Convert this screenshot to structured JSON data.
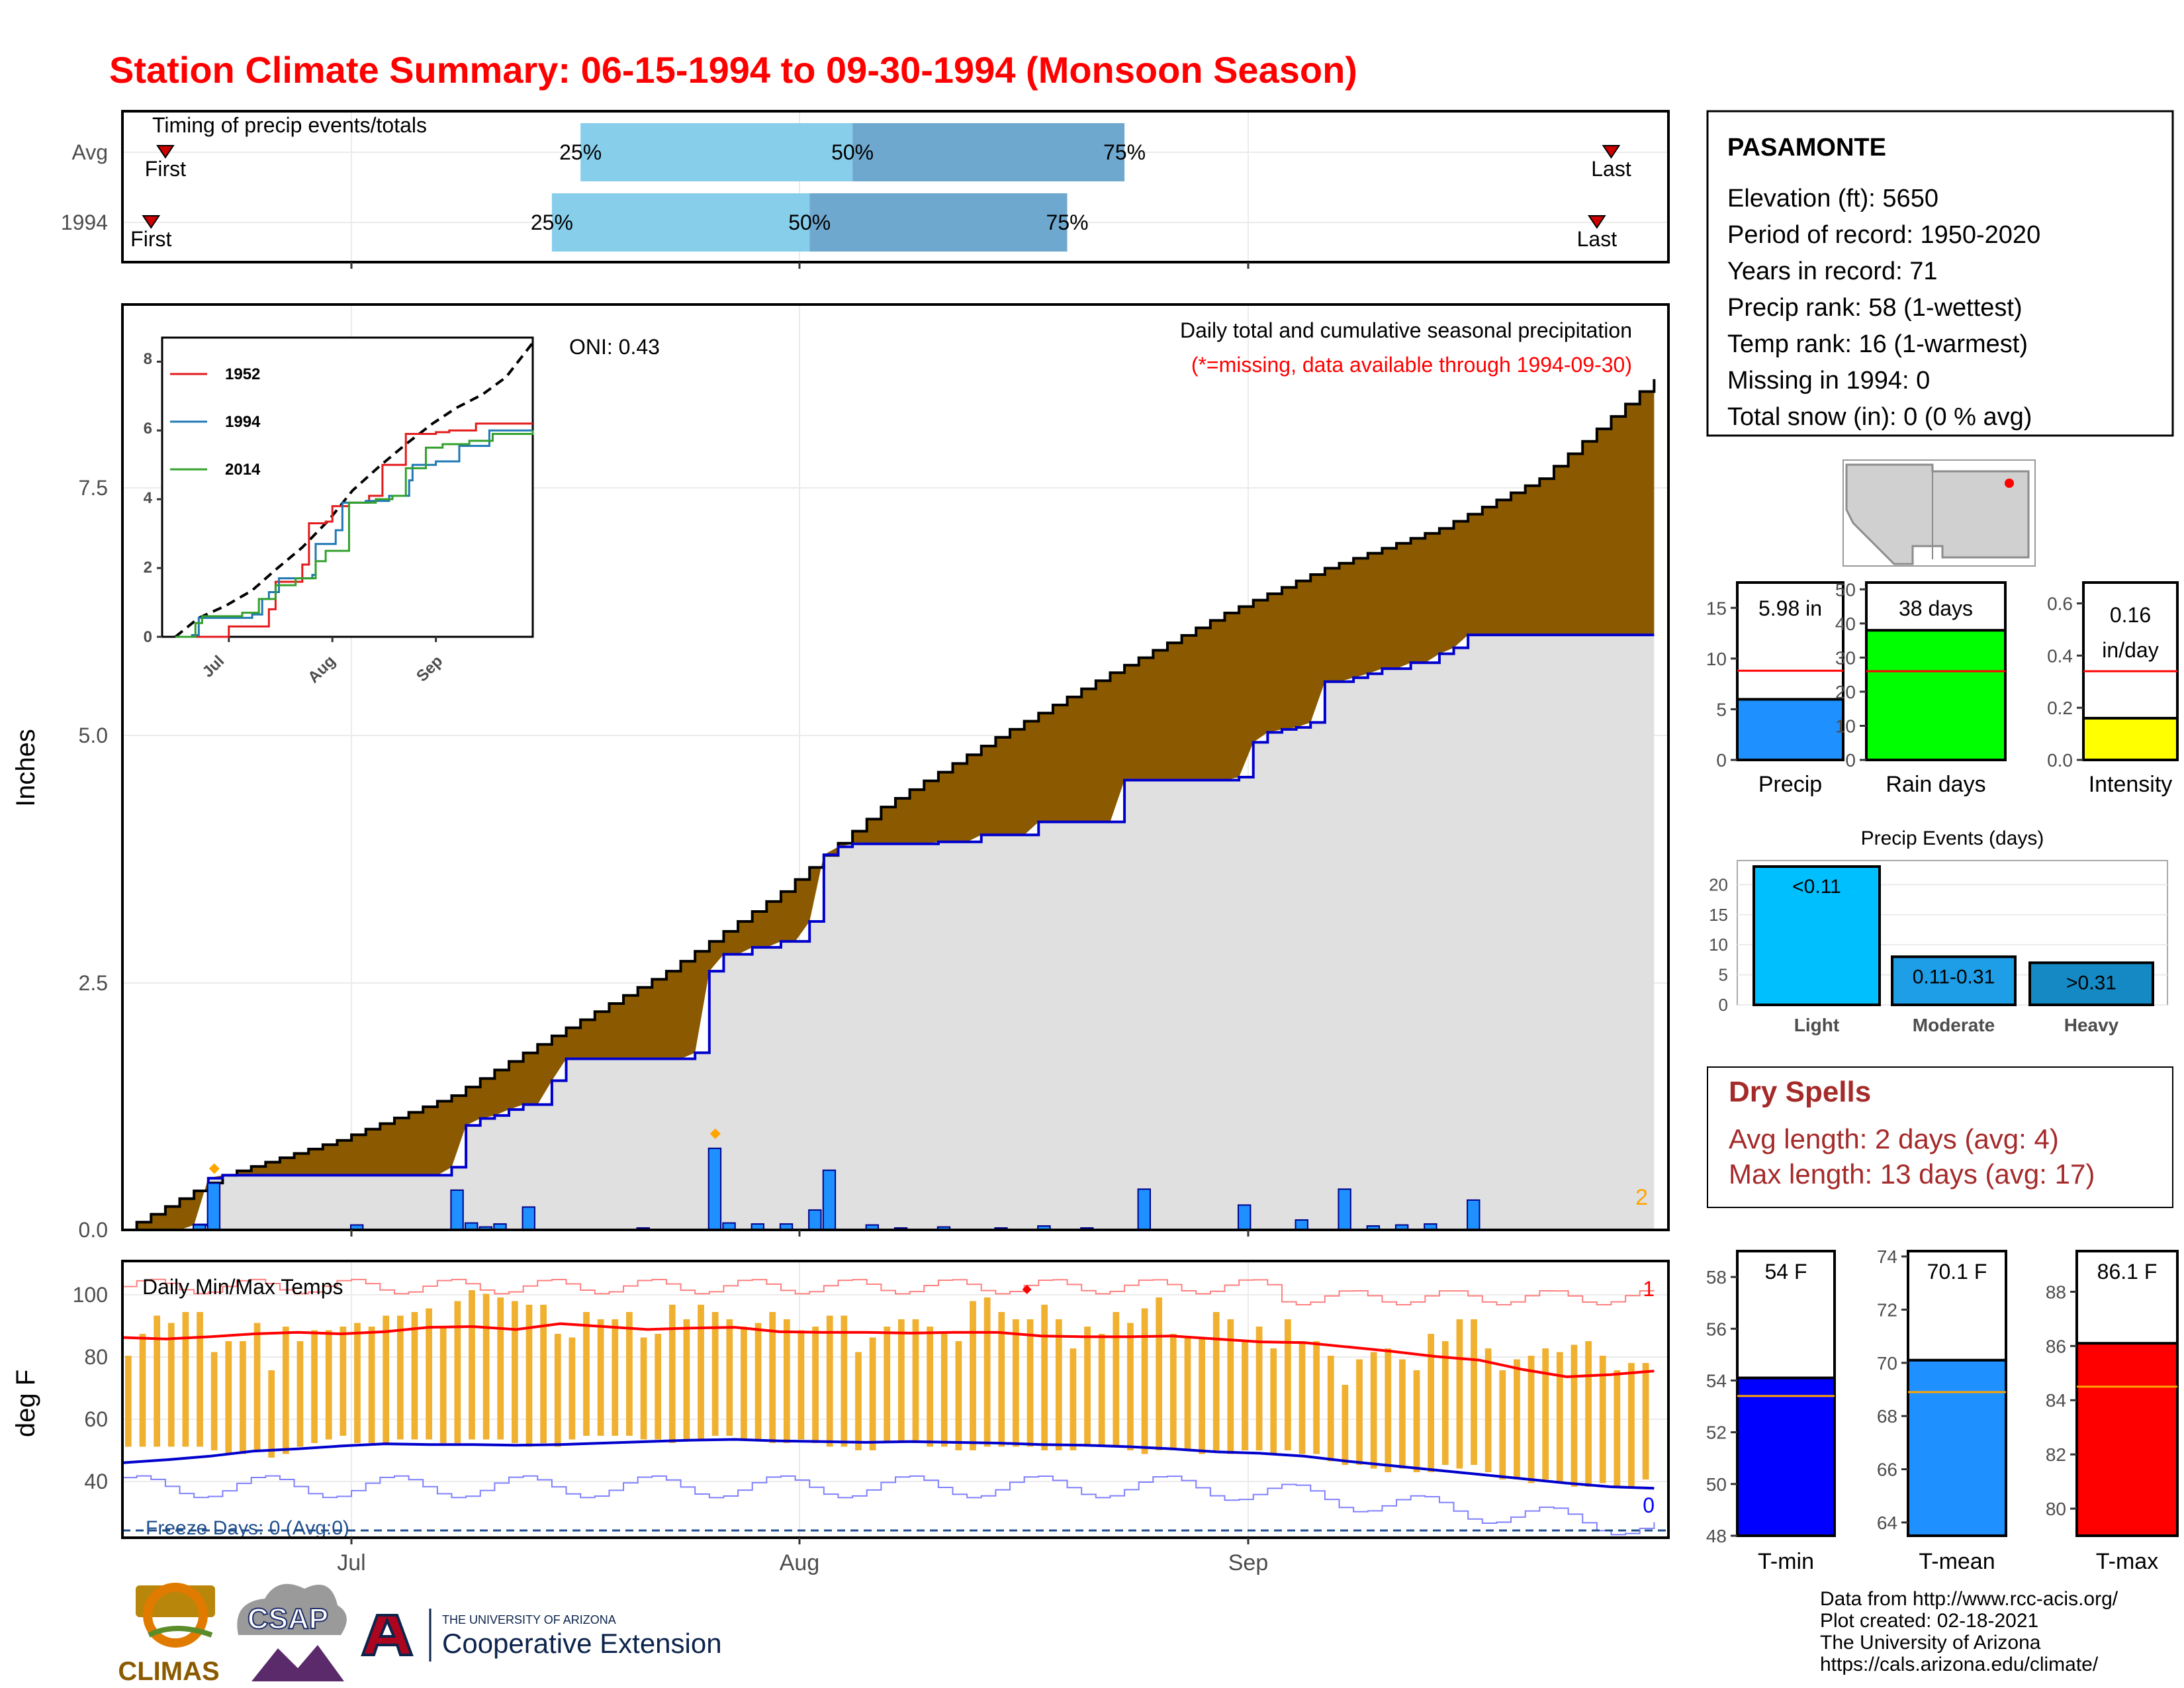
{
  "title": "Station Climate Summary: 06-15-1994 to 09-30-1994 (Monsoon Season)",
  "colors": {
    "title": "#ff0000",
    "dry_title": "#a52a2a",
    "brown": "#8b5a00",
    "precip_bar": "#1e90ff",
    "temp_bar": "#f0b030"
  },
  "timing": {
    "title": "Timing of precip events/totals",
    "rows": [
      {
        "name": "Avg",
        "first": "First",
        "last": "Last",
        "p25": "25%",
        "p50": "50%",
        "p75": "75%",
        "first_day": 3,
        "last_day": 104,
        "p25_day": 32,
        "p50_day": 51,
        "p75_day": 70
      },
      {
        "name": "1994",
        "first": "First",
        "last": "Last",
        "p25": "25%",
        "p50": "50%",
        "p75": "75%",
        "first_day": 2,
        "last_day": 103,
        "p25_day": 30,
        "p50_day": 48,
        "p75_day": 66
      }
    ]
  },
  "main_chart": {
    "ylabel": "Inches",
    "yticks": [
      "0.0",
      "2.5",
      "5.0",
      "7.5"
    ],
    "ylim": [
      0,
      9.3
    ],
    "oni": "ONI: 0.43",
    "header": "Daily total and cumulative seasonal precipitation",
    "missing_note": "(*=missing, data available through 1994-09-30)",
    "corner_count": "2",
    "xticks": [
      "Jul",
      "Aug",
      "Sep"
    ]
  },
  "inset": {
    "yticks": [
      "0",
      "2",
      "4",
      "6",
      "8"
    ],
    "xticks": [
      "Jul",
      "Aug",
      "Sep"
    ],
    "legend": [
      {
        "name": "1952",
        "color": "#e31a1c"
      },
      {
        "name": "1994",
        "color": "#1f78b4"
      },
      {
        "name": "2014",
        "color": "#33a02c"
      }
    ]
  },
  "temp_chart": {
    "ylabel": "deg F",
    "title": "Daily Min/Max Temps",
    "yticks": [
      "40",
      "60",
      "80",
      "100"
    ],
    "count_hi": "1",
    "count_lo": "0",
    "freeze": "Freeze Days: 0 (Avg:0)",
    "xticks": [
      "Jul",
      "Aug",
      "Sep"
    ]
  },
  "station": {
    "name": "PASAMONTE",
    "lines": [
      "Elevation (ft): 5650",
      "Period of record: 1950-2020",
      "Years in record: 71",
      "Precip rank: 58 (1-wettest)",
      "Temp rank: 16 (1-warmest)",
      "Missing in 1994: 0",
      "Total snow (in): 0 (0 % avg)"
    ]
  },
  "summary_bars": [
    {
      "label": "Precip",
      "value_text": "5.98 in",
      "value": 5.98,
      "avg": 8.8,
      "ymax": 17.5,
      "ticks": [
        "0",
        "5",
        "10",
        "15"
      ],
      "tick_vals": [
        0,
        5,
        10,
        15
      ],
      "color": "#1e90ff"
    },
    {
      "label": "Rain days",
      "value_text": "38 days",
      "value": 38,
      "avg": 26,
      "ymax": 52,
      "ticks": [
        "0",
        "10",
        "20",
        "30",
        "40",
        "50"
      ],
      "tick_vals": [
        0,
        10,
        20,
        30,
        40,
        50
      ],
      "color": "#00ff00"
    },
    {
      "label": "Intensity",
      "value_text": "0.16 in/day",
      "value_a": "0.16",
      "value_b": "in/day",
      "value": 0.16,
      "avg": 0.34,
      "ymax": 0.68,
      "ticks": [
        "0.0",
        "0.2",
        "0.4",
        "0.6"
      ],
      "tick_vals": [
        0,
        0.2,
        0.4,
        0.6
      ],
      "color": "#ffff00"
    }
  ],
  "events": {
    "title": "Precip Events (days)",
    "yticks": [
      "0",
      "5",
      "10",
      "15",
      "20"
    ],
    "categories": [
      "Light",
      "Moderate",
      "Heavy"
    ],
    "values": [
      23,
      8,
      7
    ],
    "labels": [
      "<0.11",
      "0.11-0.31",
      ">0.31"
    ]
  },
  "dry_spells": {
    "title": "Dry Spells",
    "avg": "Avg length: 2 days (avg: 4)",
    "max": "Max length: 13 days (avg: 17)"
  },
  "temp_bars": [
    {
      "label": "T-min",
      "value_text": "54 F",
      "value": 54.1,
      "avg": 53.4,
      "ymin": 48,
      "ymax": 59,
      "ticks": [
        "48",
        "50",
        "52",
        "54",
        "56",
        "58"
      ],
      "tick_vals": [
        48,
        50,
        52,
        54,
        56,
        58
      ],
      "color": "#0000ff"
    },
    {
      "label": "T-mean",
      "value_text": "70.1 F",
      "value": 70.1,
      "avg": 68.9,
      "ymin": 63.5,
      "ymax": 74.2,
      "ticks": [
        "64",
        "66",
        "68",
        "70",
        "72",
        "74"
      ],
      "tick_vals": [
        64,
        66,
        68,
        70,
        72,
        74
      ],
      "color": "#1e90ff"
    },
    {
      "label": "T-max",
      "value_text": "86.1 F",
      "value": 86.1,
      "avg": 84.5,
      "ymin": 79,
      "ymax": 89.5,
      "ticks": [
        "80",
        "82",
        "84",
        "86",
        "88"
      ],
      "tick_vals": [
        80,
        82,
        84,
        86,
        88
      ],
      "color": "#ff0000"
    }
  ],
  "credits": [
    "Data from http://www.rcc-acis.org/",
    "Plot created: 02-18-2021",
    "The University of Arizona",
    "https://cals.arizona.edu/climate/"
  ],
  "logos": {
    "climas": "CLIMAS",
    "csap": "CSAP",
    "ua_small": "THE UNIVERSITY OF ARIZONA",
    "ua_big": "Cooperative Extension"
  },
  "chart_data": {
    "type": "area",
    "title": "Daily total and cumulative seasonal precipitation",
    "ylabel": "Inches",
    "ylim": [
      0,
      9.3
    ],
    "x_start": "1994-06-15",
    "x_end": "1994-09-30",
    "avg_cumulative": {
      "days": [
        0,
        7,
        15,
        23,
        30,
        38,
        46,
        53,
        61,
        69,
        77,
        84,
        92,
        99,
        107
      ],
      "values": [
        0,
        0.55,
        0.9,
        1.35,
        1.95,
        2.6,
        3.4,
        4.25,
        4.95,
        5.6,
        6.2,
        6.65,
        7.05,
        7.55,
        8.55
      ]
    },
    "obs_cumulative": {
      "days": [
        0,
        5,
        6,
        7,
        23,
        24,
        25,
        26,
        27,
        28,
        30,
        31,
        40,
        41,
        42,
        44,
        46,
        48,
        49,
        50,
        51,
        57,
        60,
        64,
        70,
        78,
        79,
        80,
        81,
        82,
        83,
        84,
        86,
        87,
        88,
        90,
        92,
        93,
        94,
        95,
        107
      ],
      "values": [
        0,
        0.05,
        0.52,
        0.55,
        0.63,
        1.05,
        1.12,
        1.15,
        1.21,
        1.26,
        1.5,
        1.72,
        1.78,
        2.6,
        2.77,
        2.84,
        2.9,
        3.1,
        3.77,
        3.85,
        3.88,
        3.9,
        3.97,
        4.1,
        4.52,
        4.55,
        4.9,
        5.0,
        5.03,
        5.05,
        5.1,
        5.51,
        5.55,
        5.59,
        5.64,
        5.7,
        5.79,
        5.85,
        5.98,
        5.98,
        5.98
      ]
    },
    "daily_totals": [
      [
        5,
        0.05
      ],
      [
        6,
        0.47
      ],
      [
        16,
        0.05
      ],
      [
        23,
        0.4
      ],
      [
        24,
        0.07
      ],
      [
        25,
        0.03
      ],
      [
        26,
        0.06
      ],
      [
        28,
        0.23
      ],
      [
        36,
        0.02
      ],
      [
        41,
        0.82
      ],
      [
        42,
        0.07
      ],
      [
        44,
        0.06
      ],
      [
        46,
        0.06
      ],
      [
        48,
        0.2
      ],
      [
        49,
        0.6
      ],
      [
        52,
        0.05
      ],
      [
        54,
        0.02
      ],
      [
        57,
        0.03
      ],
      [
        61,
        0.02
      ],
      [
        64,
        0.04
      ],
      [
        67,
        0.02
      ],
      [
        71,
        0.41
      ],
      [
        78,
        0.25
      ],
      [
        82,
        0.1
      ],
      [
        85,
        0.41
      ],
      [
        87,
        0.04
      ],
      [
        89,
        0.05
      ],
      [
        91,
        0.06
      ],
      [
        94,
        0.3
      ]
    ],
    "temps": {
      "ylabel": "deg F",
      "ylim": [
        30,
        106
      ],
      "tmax_avg": [
        85,
        84.6,
        85.2,
        86,
        86.4,
        86,
        86.6,
        87.8,
        88,
        87.2,
        88.8,
        88,
        87.2,
        87.6,
        87.8,
        86.6,
        86.4,
        86.4,
        86.2,
        86.4,
        86.4,
        85.4,
        85.2,
        85.2,
        85.4,
        84.6,
        83.8,
        83.6,
        82.4,
        81.2,
        79.8,
        78.8,
        76.2,
        74.2,
        74.8,
        75.8
      ],
      "tmin_avg": [
        50.6,
        51.4,
        52.4,
        53.8,
        54.4,
        55.2,
        55.8,
        55.6,
        55.6,
        55.4,
        55.6,
        56,
        56.4,
        56.8,
        57,
        56.6,
        56.4,
        56.2,
        56.4,
        56.2,
        56,
        55.6,
        55.4,
        55,
        54.4,
        53.6,
        53.2,
        52.4,
        51,
        49.8,
        48.6,
        47.4,
        46.2,
        45,
        44,
        43.6
      ],
      "daily_max": [
        80,
        86,
        91,
        89,
        92,
        92,
        81,
        84,
        84,
        89,
        76,
        88,
        84,
        87,
        87,
        88,
        89,
        88,
        91,
        91,
        92,
        93,
        88,
        95,
        98,
        97,
        96,
        95,
        94,
        94,
        86,
        85,
        92,
        90,
        90,
        92,
        85,
        86,
        94,
        90,
        94,
        92,
        90,
        88,
        89,
        92,
        90,
        87,
        88,
        91,
        91,
        81,
        85,
        88,
        90,
        90,
        88,
        86,
        84,
        95,
        96,
        92,
        90,
        90,
        94,
        90,
        82,
        88,
        86,
        92,
        89,
        93,
        96,
        86,
        85,
        85,
        92,
        90,
        84,
        88,
        82,
        90,
        84,
        84,
        80,
        72,
        79,
        81,
        82,
        79,
        76,
        86,
        84,
        90,
        90,
        82,
        76,
        79,
        80,
        82,
        81,
        83,
        84,
        80,
        76,
        78,
        78
      ],
      "daily_min": [
        55,
        55,
        55,
        55,
        55,
        55,
        54,
        53,
        53,
        54,
        52,
        53,
        55,
        56,
        57,
        58,
        56,
        56,
        56,
        57,
        57,
        57,
        56,
        56,
        57,
        57,
        57,
        56,
        55,
        56,
        55,
        57,
        58,
        58,
        58,
        58,
        57,
        57,
        56,
        57,
        57,
        58,
        58,
        57,
        57,
        56,
        56,
        57,
        56,
        55,
        55,
        54,
        54,
        56,
        56,
        56,
        55,
        55,
        54,
        54,
        55,
        55,
        55,
        55,
        54,
        54,
        54,
        55,
        55,
        55,
        54,
        53,
        54,
        54,
        54,
        53,
        54,
        53,
        54,
        54,
        53,
        54,
        53,
        53,
        51,
        50,
        50,
        49,
        48,
        49,
        48,
        48,
        50,
        49,
        50,
        48,
        46,
        46,
        45,
        46,
        45,
        44,
        44,
        45,
        44,
        44,
        46
      ]
    }
  }
}
